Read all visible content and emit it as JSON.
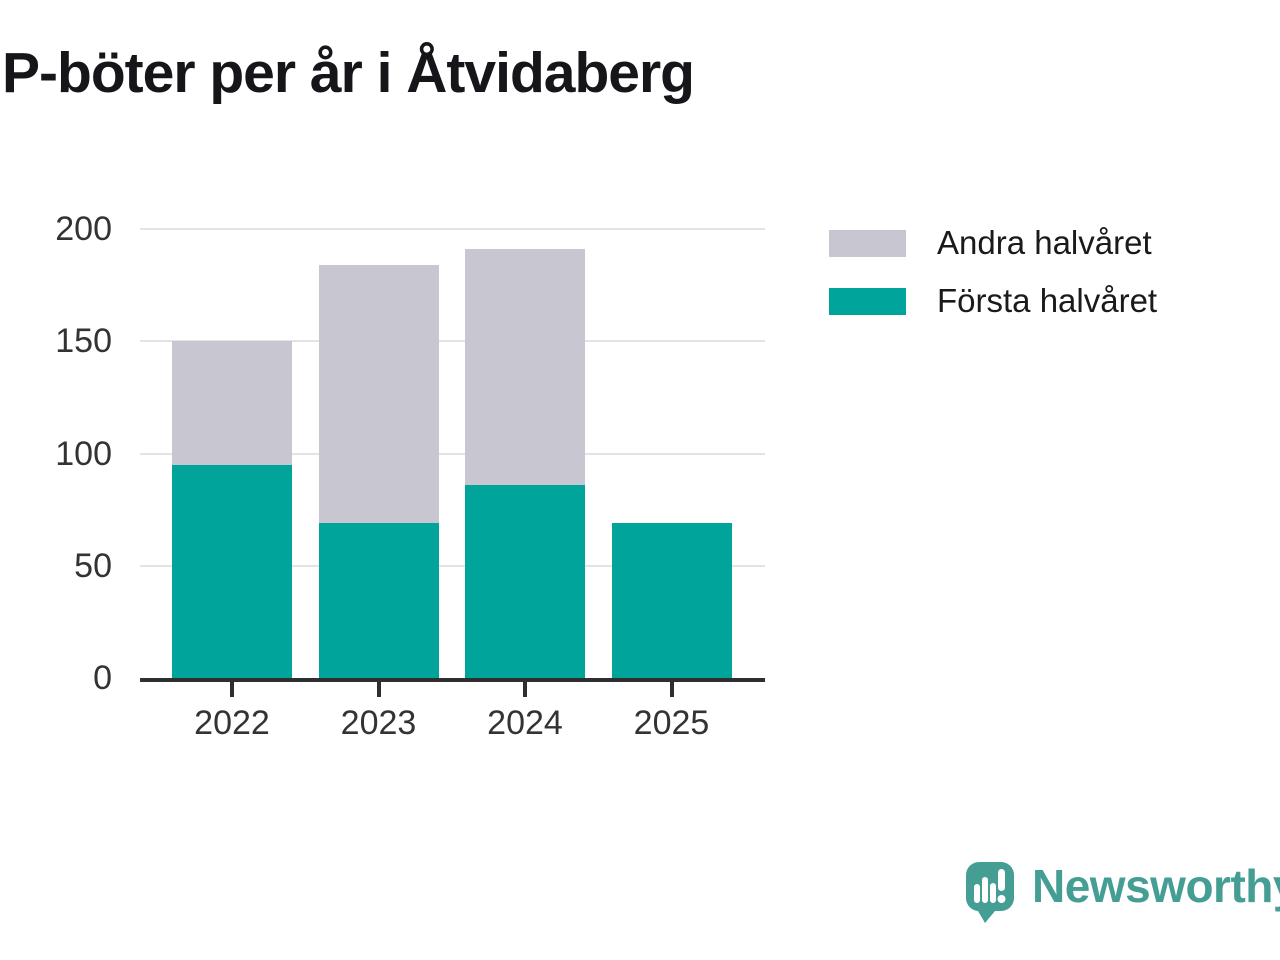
{
  "title": "P-böter per år i Åtvidaberg",
  "chart_data": {
    "type": "bar",
    "stacked": true,
    "title": "P-böter per år i Åtvidaberg",
    "categories": [
      "2022",
      "2023",
      "2024",
      "2025"
    ],
    "series": [
      {
        "name": "Första halvåret",
        "color": "#00A49A",
        "values": [
          95,
          69,
          86,
          69
        ]
      },
      {
        "name": "Andra halvåret",
        "color": "#C8C7D1",
        "values": [
          55,
          115,
          105,
          0
        ]
      }
    ],
    "legend": [
      {
        "label": "Andra halvåret",
        "color": "#C8C7D1"
      },
      {
        "label": "Första halvåret",
        "color": "#00A49A"
      }
    ],
    "xlabel": "",
    "ylabel": "",
    "ylim": [
      0,
      200
    ],
    "yticks": [
      0,
      50,
      100,
      150,
      200
    ],
    "grid": "horizontal",
    "legend_position": "top-right"
  },
  "footer": {
    "brand": "Newsworthy"
  },
  "colors": {
    "axis": "#2F2F2F",
    "grid": "#E3E3E5",
    "tick_label": "#333333",
    "title_text": "#16161A",
    "logo": "#459E94"
  }
}
